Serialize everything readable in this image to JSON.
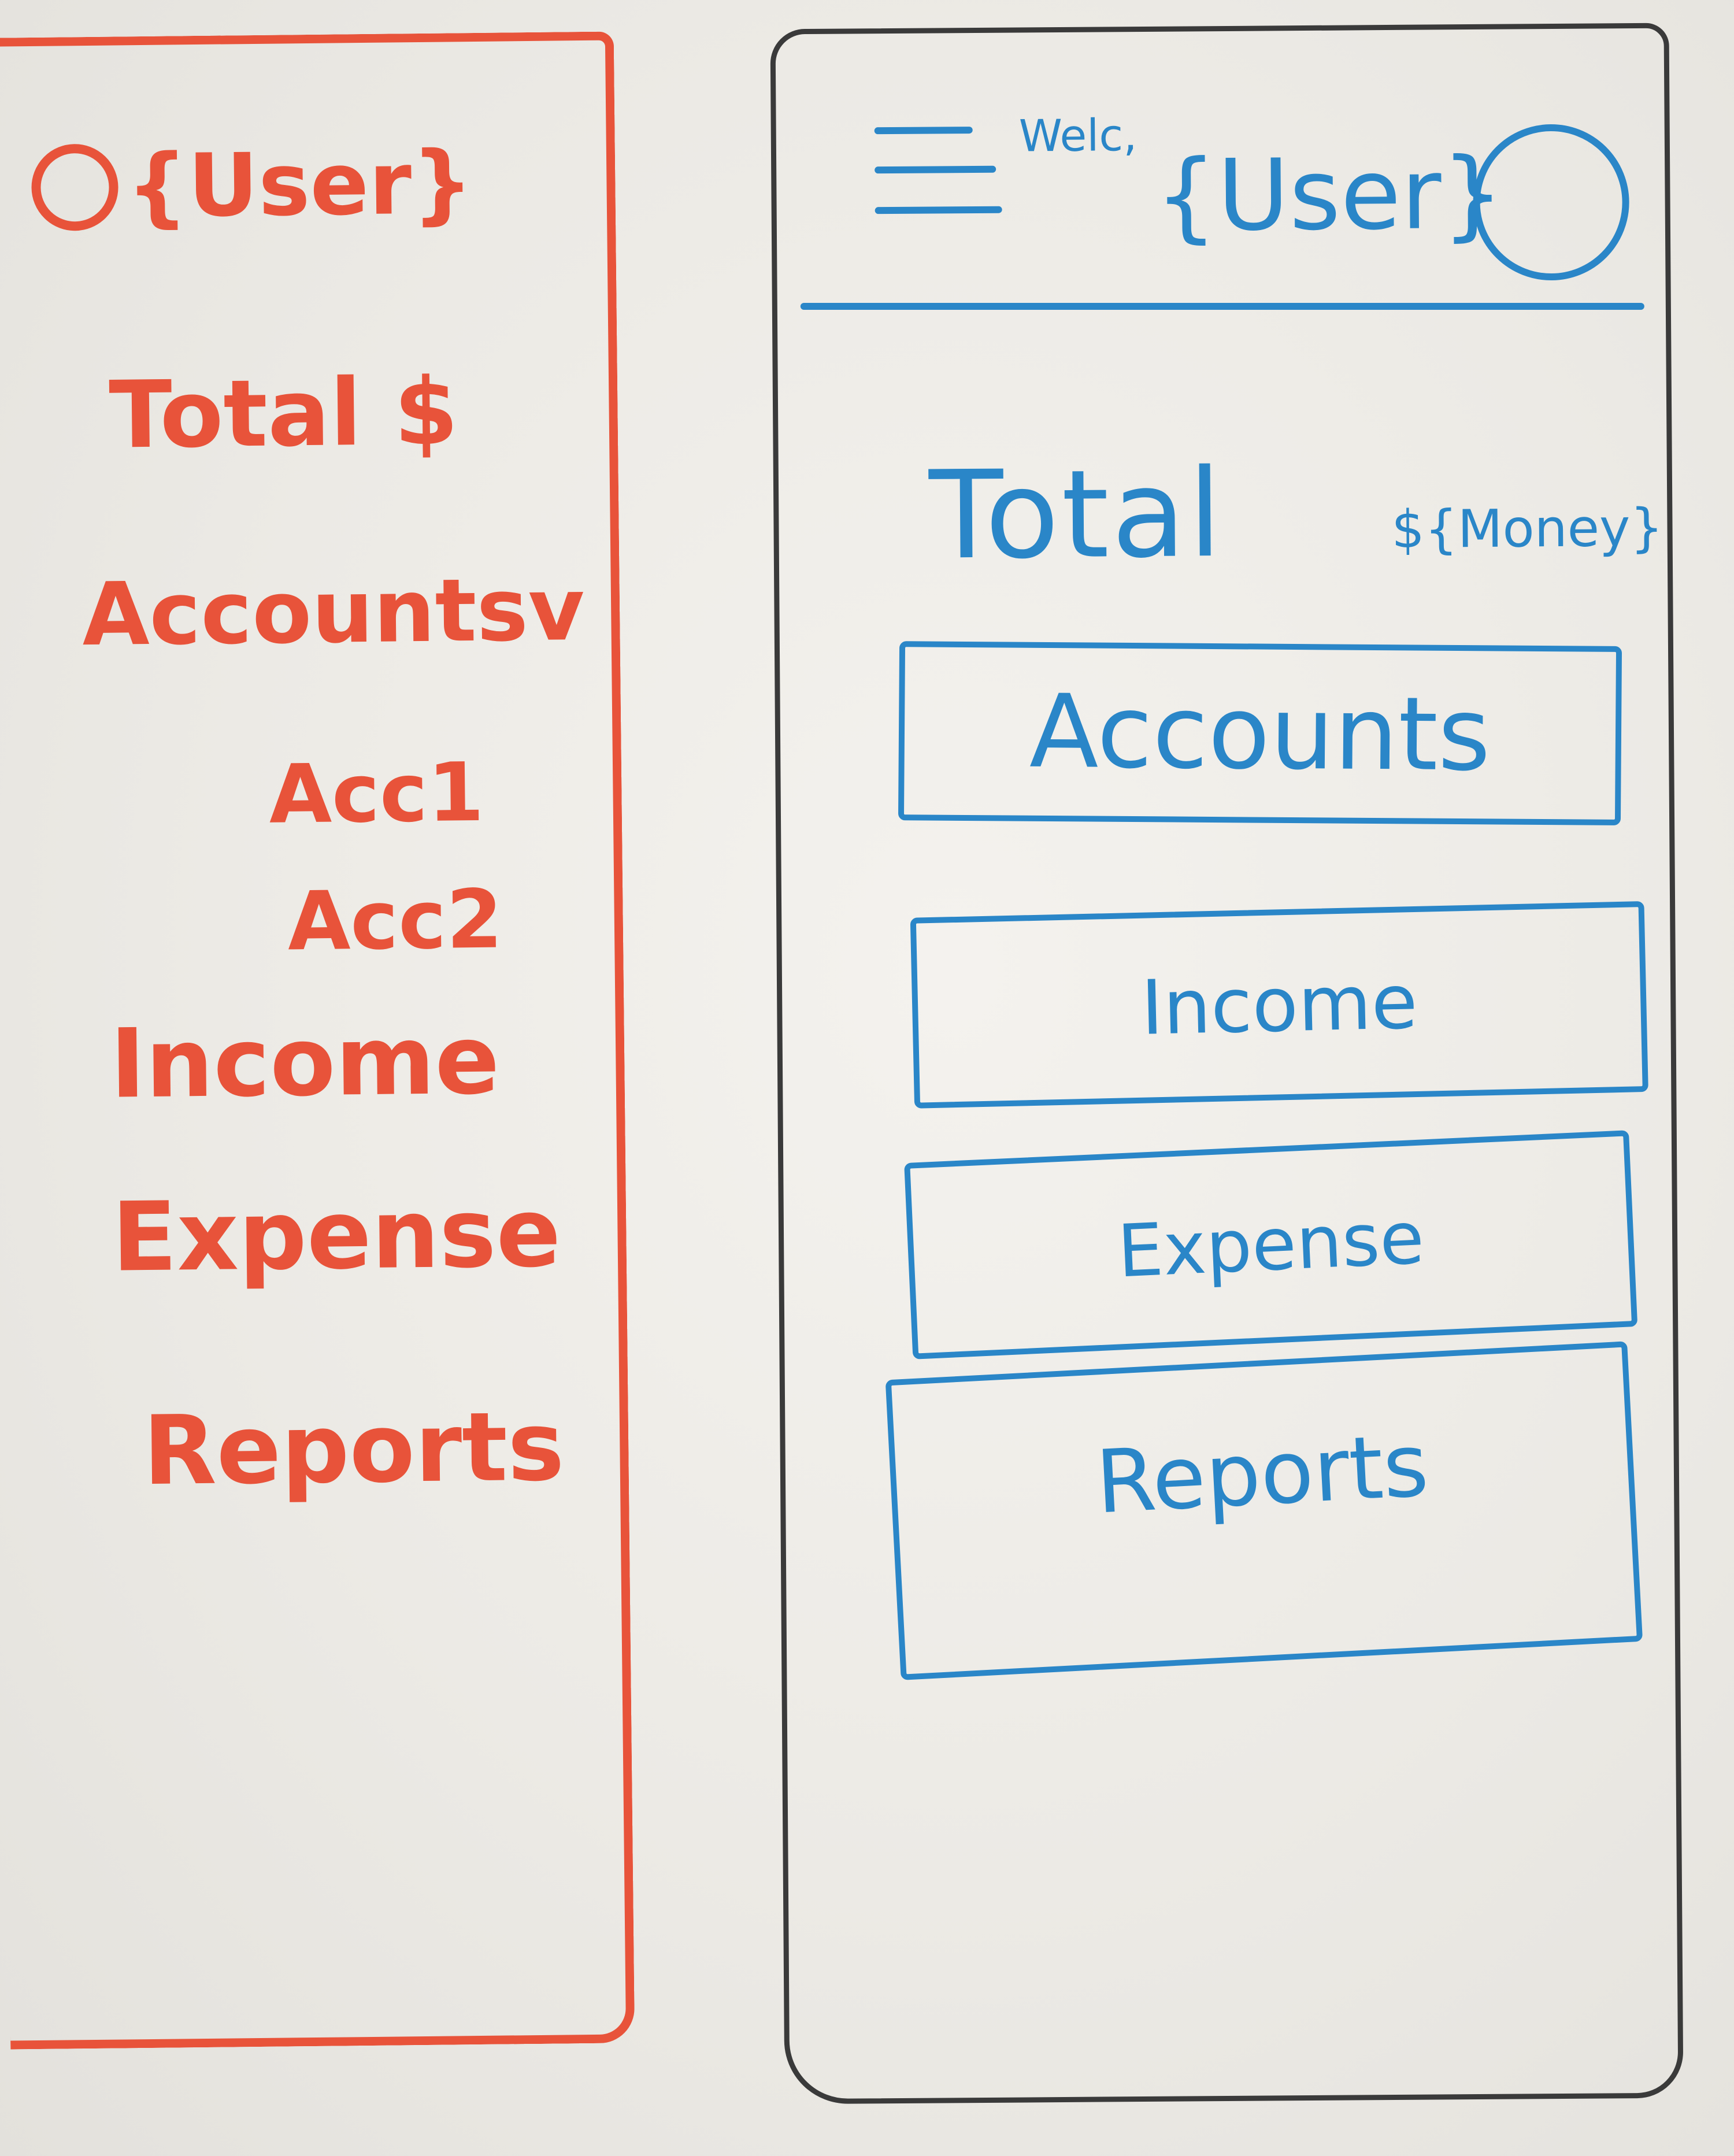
{
  "drawer": {
    "user": "{User}",
    "total": "Total $",
    "accounts": "Accountsv",
    "account_items": [
      "Acc1",
      "Acc2"
    ],
    "income": "Income",
    "expense": "Expense",
    "reports": "Reports",
    "stroke_color": "#e8533a"
  },
  "phone": {
    "appbar": {
      "menu_icon": "hamburger-menu-icon",
      "greeting": "Welc,",
      "user": "{User}",
      "profile_icon": "profile-avatar-icon"
    },
    "total": {
      "label": "Total",
      "value": "${Money}"
    },
    "buttons": {
      "accounts": "Accounts",
      "income": "Income",
      "expense": "Expense",
      "reports": "Reports"
    },
    "stroke_color": "#2a86c8",
    "outline_color": "#3a3a3a"
  }
}
